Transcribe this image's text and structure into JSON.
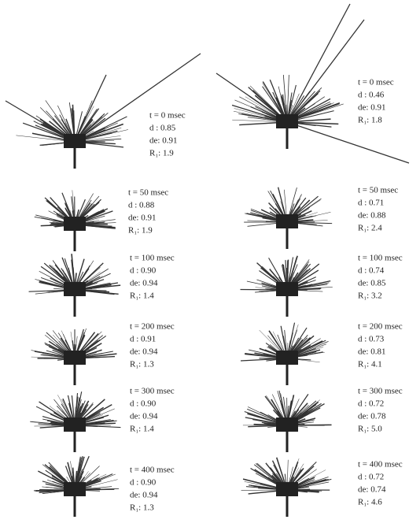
{
  "figure": {
    "left": [
      {
        "t": "t = 0 msec",
        "d": "d : 0.85",
        "de": "de: 0.91",
        "r1": "R₁: 1.9"
      },
      {
        "t": "t = 50 msec",
        "d": "d : 0.88",
        "de": "de: 0.91",
        "r1": "R₁: 1.9"
      },
      {
        "t": "t = 100 msec",
        "d": "d : 0.90",
        "de": "de: 0.94",
        "r1": "R₁: 1.4"
      },
      {
        "t": "t = 200 msec",
        "d": "d : 0.91",
        "de": "de: 0.94",
        "r1": "R₁: 1.3"
      },
      {
        "t": "t = 300 msec",
        "d": "d : 0.90",
        "de": "de: 0.94",
        "r1": "R₁: 1.4"
      },
      {
        "t": "t = 400 msec",
        "d": "d : 0.90",
        "de": "de: 0.94",
        "r1": "R₁: 1.3"
      }
    ],
    "right": [
      {
        "t": "t = 0 msec",
        "d": "d : 0.46",
        "de": "de: 0.91",
        "r1": "R₁: 1.8"
      },
      {
        "t": "t = 50 msec",
        "d": "d : 0.71",
        "de": "de: 0.88",
        "r1": "R₁: 2.4"
      },
      {
        "t": "t = 100 msec",
        "d": "d : 0.74",
        "de": "de: 0.85",
        "r1": "R₁: 3.2"
      },
      {
        "t": "t = 200 msec",
        "d": "d : 0.73",
        "de": "de: 0.81",
        "r1": "R₁: 4.1"
      },
      {
        "t": "t = 300 msec",
        "d": "d : 0.72",
        "de": "de: 0.78",
        "r1": "R₁: 5.0"
      },
      {
        "t": "t = 400 msec",
        "d": "d : 0.72",
        "de": "de: 0.74",
        "r1": "R₁: 4.6"
      }
    ]
  }
}
